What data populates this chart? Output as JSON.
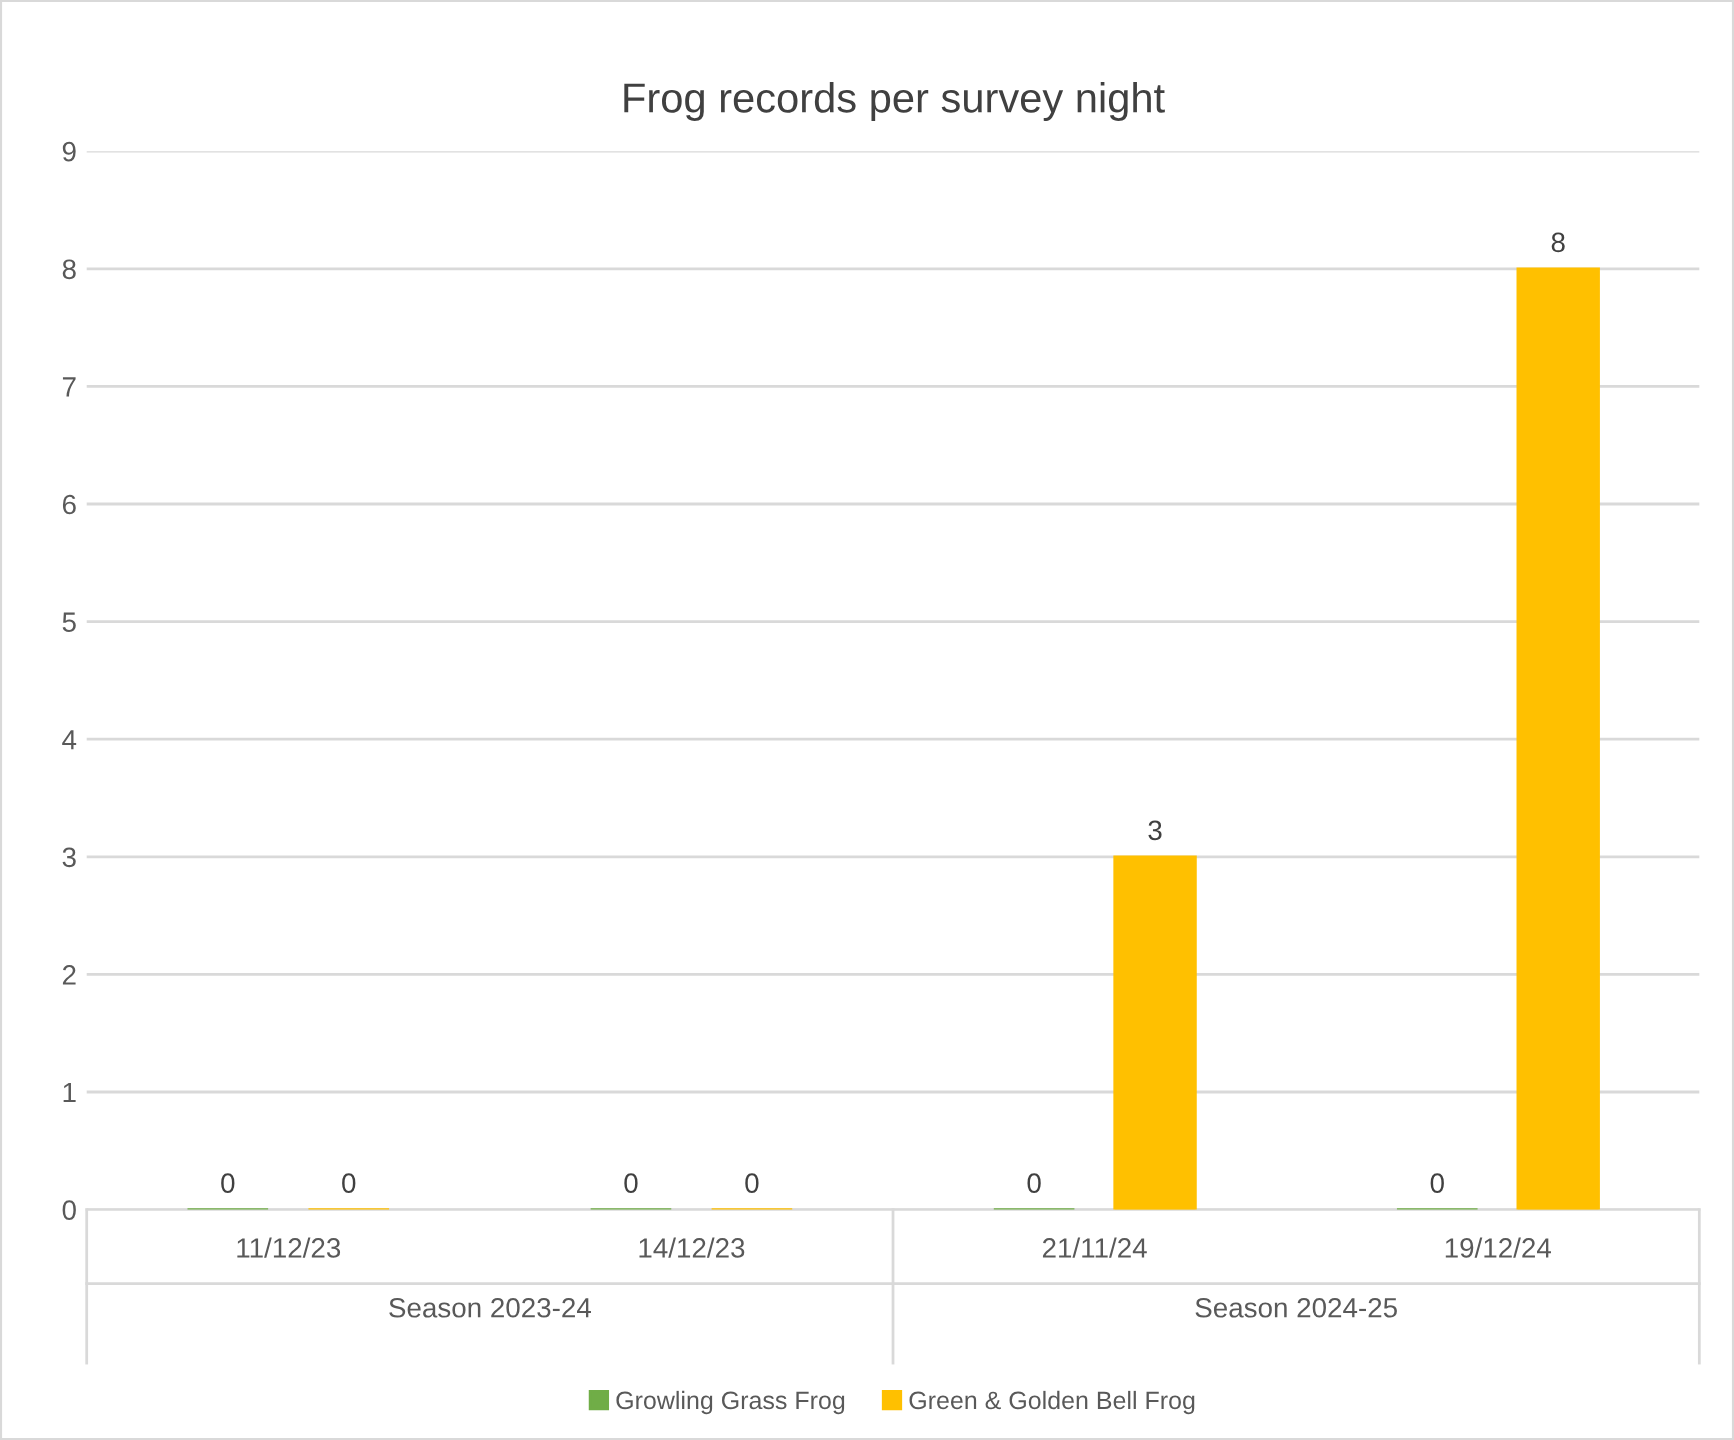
{
  "chart_data": {
    "type": "bar",
    "title": "Frog records per survey night",
    "categories": [
      "11/12/23",
      "14/12/23",
      "21/11/24",
      "19/12/24"
    ],
    "series": [
      {
        "name": "Growling Grass Frog",
        "color": "#70ad47",
        "values": [
          0,
          0,
          0,
          0
        ]
      },
      {
        "name": "Green & Golden Bell Frog",
        "color": "#ffc000",
        "values": [
          0,
          0,
          3,
          8
        ]
      }
    ],
    "ylim": [
      0,
      9
    ],
    "yticks": [
      0,
      1,
      2,
      3,
      4,
      5,
      6,
      7,
      8,
      9
    ],
    "grid": "y",
    "legend": "bottom",
    "data_labels": true,
    "annotations": [
      "Season 2023-24",
      "Season 2024-25"
    ]
  }
}
